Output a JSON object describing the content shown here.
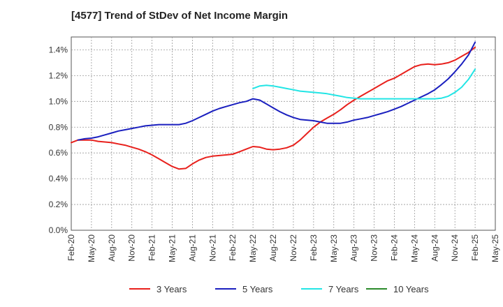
{
  "chart_data": {
    "type": "line",
    "title": "[4577]  Trend of StDev of Net Income Margin",
    "xlabel": "",
    "ylabel": "",
    "x_ticks": [
      "Feb-20",
      "May-20",
      "Aug-20",
      "Nov-20",
      "Feb-21",
      "May-21",
      "Aug-21",
      "Nov-21",
      "Feb-22",
      "May-22",
      "Aug-22",
      "Nov-22",
      "Feb-23",
      "May-23",
      "Aug-23",
      "Nov-23",
      "Feb-24",
      "May-24",
      "Aug-24",
      "Nov-24",
      "Feb-25",
      "May-25"
    ],
    "y_ticks": [
      "0.0%",
      "0.2%",
      "0.4%",
      "0.6%",
      "0.8%",
      "1.0%",
      "1.2%",
      "1.4%"
    ],
    "ylim": [
      0,
      1.5
    ],
    "y_unit": "%",
    "grid": true,
    "legend_position": "bottom",
    "series": [
      {
        "name": "3 Years",
        "color": "#e8201c",
        "points": [
          [
            "Feb-20",
            0.68
          ],
          [
            "Mar-20",
            0.7
          ],
          [
            "Apr-20",
            0.7
          ],
          [
            "May-20",
            0.7
          ],
          [
            "Jun-20",
            0.69
          ],
          [
            "Jul-20",
            0.685
          ],
          [
            "Aug-20",
            0.68
          ],
          [
            "Sep-20",
            0.67
          ],
          [
            "Oct-20",
            0.66
          ],
          [
            "Nov-20",
            0.645
          ],
          [
            "Dec-20",
            0.63
          ],
          [
            "Jan-21",
            0.61
          ],
          [
            "Feb-21",
            0.585
          ],
          [
            "Mar-21",
            0.555
          ],
          [
            "Apr-21",
            0.525
          ],
          [
            "May-21",
            0.495
          ],
          [
            "Jun-21",
            0.475
          ],
          [
            "Jul-21",
            0.48
          ],
          [
            "Aug-21",
            0.515
          ],
          [
            "Sep-21",
            0.545
          ],
          [
            "Oct-21",
            0.565
          ],
          [
            "Nov-21",
            0.575
          ],
          [
            "Dec-21",
            0.58
          ],
          [
            "Jan-22",
            0.585
          ],
          [
            "Feb-22",
            0.59
          ],
          [
            "Mar-22",
            0.61
          ],
          [
            "Apr-22",
            0.63
          ],
          [
            "May-22",
            0.65
          ],
          [
            "Jun-22",
            0.645
          ],
          [
            "Jul-22",
            0.63
          ],
          [
            "Aug-22",
            0.625
          ],
          [
            "Sep-22",
            0.63
          ],
          [
            "Oct-22",
            0.64
          ],
          [
            "Nov-22",
            0.66
          ],
          [
            "Dec-22",
            0.7
          ],
          [
            "Jan-23",
            0.75
          ],
          [
            "Feb-23",
            0.8
          ],
          [
            "Mar-23",
            0.84
          ],
          [
            "Apr-23",
            0.87
          ],
          [
            "May-23",
            0.9
          ],
          [
            "Jun-23",
            0.935
          ],
          [
            "Jul-23",
            0.975
          ],
          [
            "Aug-23",
            1.01
          ],
          [
            "Sep-23",
            1.04
          ],
          [
            "Oct-23",
            1.07
          ],
          [
            "Nov-23",
            1.1
          ],
          [
            "Dec-23",
            1.13
          ],
          [
            "Jan-24",
            1.16
          ],
          [
            "Feb-24",
            1.18
          ],
          [
            "Mar-24",
            1.21
          ],
          [
            "Apr-24",
            1.24
          ],
          [
            "May-24",
            1.27
          ],
          [
            "Jun-24",
            1.285
          ],
          [
            "Jul-24",
            1.29
          ],
          [
            "Aug-24",
            1.285
          ],
          [
            "Sep-24",
            1.29
          ],
          [
            "Oct-24",
            1.3
          ],
          [
            "Nov-24",
            1.32
          ],
          [
            "Dec-24",
            1.35
          ],
          [
            "Jan-25",
            1.38
          ],
          [
            "Feb-25",
            1.42
          ]
        ]
      },
      {
        "name": "5 Years",
        "color": "#1a1fbf",
        "points": [
          [
            "Mar-20",
            0.7
          ],
          [
            "Apr-20",
            0.71
          ],
          [
            "May-20",
            0.715
          ],
          [
            "Jun-20",
            0.725
          ],
          [
            "Jul-20",
            0.74
          ],
          [
            "Aug-20",
            0.755
          ],
          [
            "Sep-20",
            0.77
          ],
          [
            "Oct-20",
            0.78
          ],
          [
            "Nov-20",
            0.79
          ],
          [
            "Dec-20",
            0.8
          ],
          [
            "Jan-21",
            0.81
          ],
          [
            "Feb-21",
            0.815
          ],
          [
            "Mar-21",
            0.82
          ],
          [
            "Apr-21",
            0.82
          ],
          [
            "May-21",
            0.82
          ],
          [
            "Jun-21",
            0.82
          ],
          [
            "Jul-21",
            0.83
          ],
          [
            "Aug-21",
            0.85
          ],
          [
            "Sep-21",
            0.875
          ],
          [
            "Oct-21",
            0.9
          ],
          [
            "Nov-21",
            0.925
          ],
          [
            "Dec-21",
            0.945
          ],
          [
            "Jan-22",
            0.96
          ],
          [
            "Feb-22",
            0.975
          ],
          [
            "Mar-22",
            0.99
          ],
          [
            "Apr-22",
            1.0
          ],
          [
            "May-22",
            1.02
          ],
          [
            "Jun-22",
            1.01
          ],
          [
            "Jul-22",
            0.98
          ],
          [
            "Aug-22",
            0.95
          ],
          [
            "Sep-22",
            0.92
          ],
          [
            "Oct-22",
            0.895
          ],
          [
            "Nov-22",
            0.875
          ],
          [
            "Dec-22",
            0.86
          ],
          [
            "Jan-23",
            0.855
          ],
          [
            "Feb-23",
            0.85
          ],
          [
            "Mar-23",
            0.84
          ],
          [
            "Apr-23",
            0.83
          ],
          [
            "May-23",
            0.83
          ],
          [
            "Jun-23",
            0.83
          ],
          [
            "Jul-23",
            0.84
          ],
          [
            "Aug-23",
            0.855
          ],
          [
            "Sep-23",
            0.865
          ],
          [
            "Oct-23",
            0.875
          ],
          [
            "Nov-23",
            0.89
          ],
          [
            "Dec-23",
            0.905
          ],
          [
            "Jan-24",
            0.92
          ],
          [
            "Feb-24",
            0.94
          ],
          [
            "Mar-24",
            0.96
          ],
          [
            "Apr-24",
            0.985
          ],
          [
            "May-24",
            1.01
          ],
          [
            "Jun-24",
            1.035
          ],
          [
            "Jul-24",
            1.06
          ],
          [
            "Aug-24",
            1.09
          ],
          [
            "Sep-24",
            1.13
          ],
          [
            "Oct-24",
            1.175
          ],
          [
            "Nov-24",
            1.23
          ],
          [
            "Dec-24",
            1.29
          ],
          [
            "Jan-25",
            1.36
          ],
          [
            "Feb-25",
            1.46
          ]
        ]
      },
      {
        "name": "7 Years",
        "color": "#22e5e5",
        "points": [
          [
            "May-22",
            1.1
          ],
          [
            "Jun-22",
            1.12
          ],
          [
            "Jul-22",
            1.125
          ],
          [
            "Aug-22",
            1.12
          ],
          [
            "Sep-22",
            1.11
          ],
          [
            "Oct-22",
            1.1
          ],
          [
            "Nov-22",
            1.09
          ],
          [
            "Dec-22",
            1.08
          ],
          [
            "Jan-23",
            1.075
          ],
          [
            "Feb-23",
            1.07
          ],
          [
            "Mar-23",
            1.065
          ],
          [
            "Apr-23",
            1.06
          ],
          [
            "May-23",
            1.05
          ],
          [
            "Jun-23",
            1.04
          ],
          [
            "Jul-23",
            1.03
          ],
          [
            "Aug-23",
            1.025
          ],
          [
            "Sep-23",
            1.02
          ],
          [
            "Oct-23",
            1.02
          ],
          [
            "Nov-23",
            1.02
          ],
          [
            "Dec-23",
            1.02
          ],
          [
            "Jan-24",
            1.02
          ],
          [
            "Feb-24",
            1.02
          ],
          [
            "Mar-24",
            1.02
          ],
          [
            "Apr-24",
            1.02
          ],
          [
            "May-24",
            1.02
          ],
          [
            "Jun-24",
            1.02
          ],
          [
            "Jul-24",
            1.02
          ],
          [
            "Aug-24",
            1.02
          ],
          [
            "Sep-24",
            1.025
          ],
          [
            "Oct-24",
            1.04
          ],
          [
            "Nov-24",
            1.07
          ],
          [
            "Dec-24",
            1.11
          ],
          [
            "Jan-25",
            1.17
          ],
          [
            "Feb-25",
            1.25
          ]
        ]
      },
      {
        "name": "10 Years",
        "color": "#2a8a2a",
        "points": []
      }
    ]
  }
}
